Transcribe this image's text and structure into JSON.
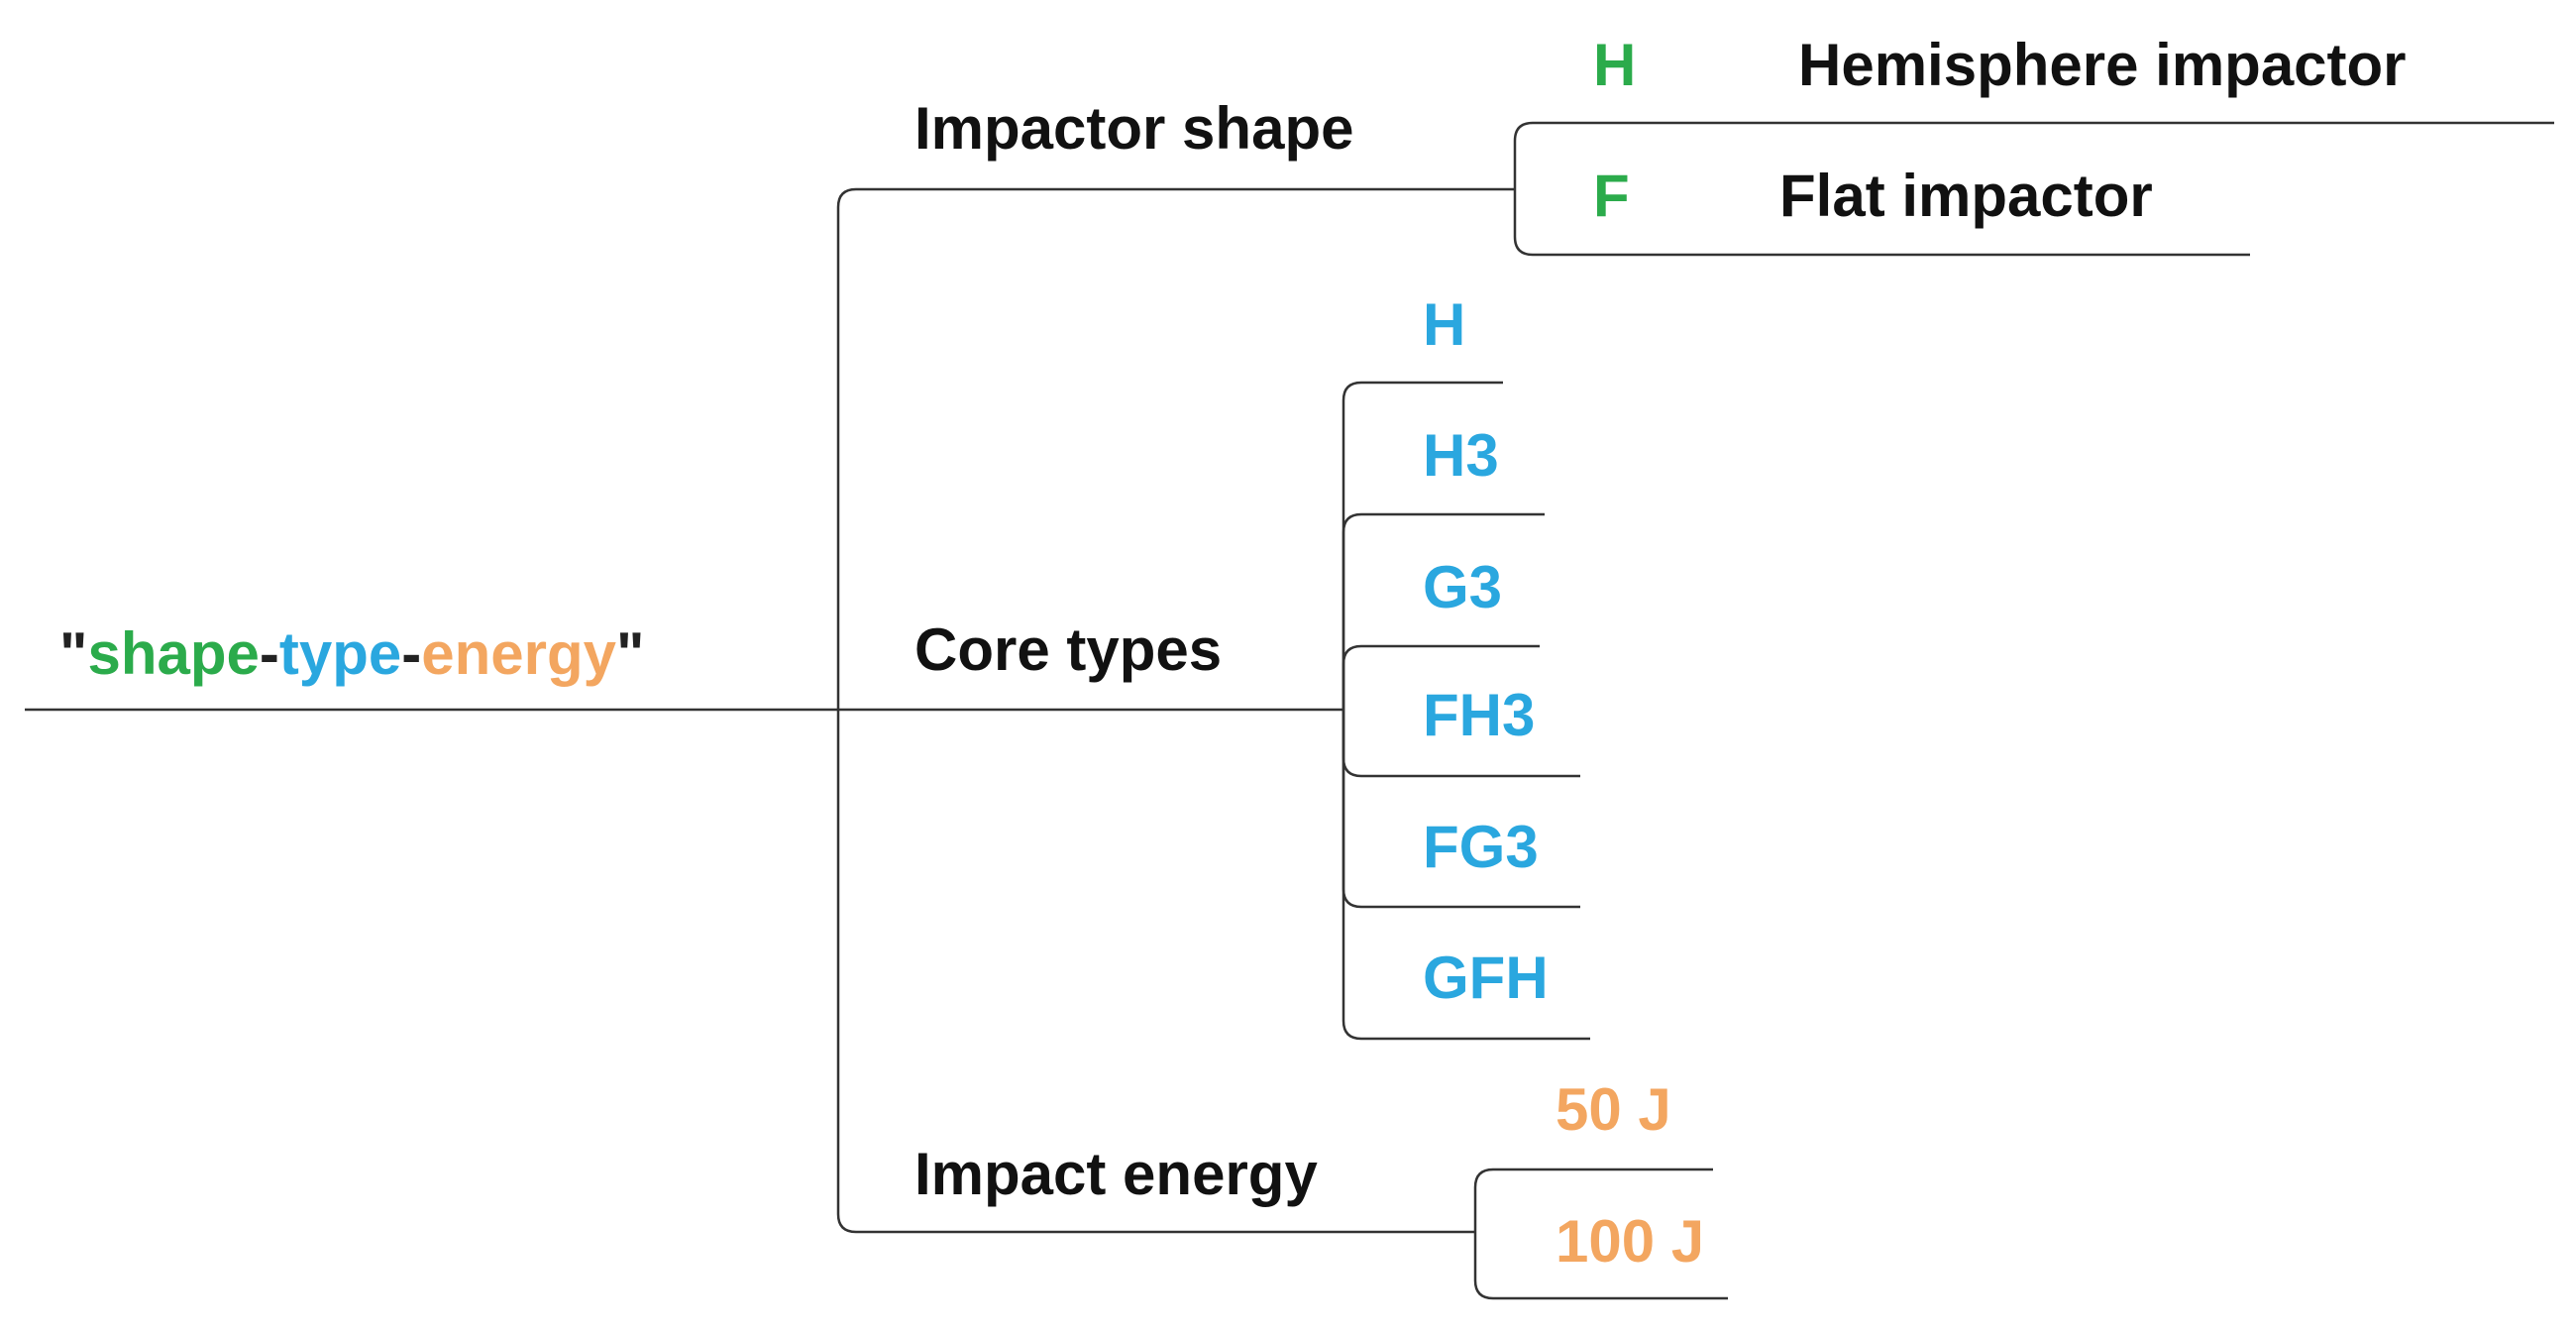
{
  "root": {
    "segments": [
      {
        "text": "\"",
        "color": "#222222"
      },
      {
        "text": "shape",
        "color": "#2bab4b"
      },
      {
        "text": "-",
        "color": "#222222"
      },
      {
        "text": "type",
        "color": "#2aa7df"
      },
      {
        "text": "-",
        "color": "#222222"
      },
      {
        "text": "energy",
        "color": "#f3a660"
      },
      {
        "text": "\"",
        "color": "#222222"
      }
    ]
  },
  "branches": [
    {
      "label": "Impactor shape",
      "color": "#2bab4b",
      "children": [
        {
          "code": "H",
          "label": "Hemisphere impactor"
        },
        {
          "code": "F",
          "label": "Flat impactor"
        }
      ]
    },
    {
      "label": "Core types",
      "color": "#2aa7df",
      "children": [
        {
          "code": "H"
        },
        {
          "code": "H3"
        },
        {
          "code": "G3"
        },
        {
          "code": "FH3"
        },
        {
          "code": "FG3"
        },
        {
          "code": "GFH"
        }
      ]
    },
    {
      "label": "Impact energy",
      "color": "#f3a660",
      "children": [
        {
          "code": "50 J"
        },
        {
          "code": "100 J"
        }
      ]
    }
  ]
}
